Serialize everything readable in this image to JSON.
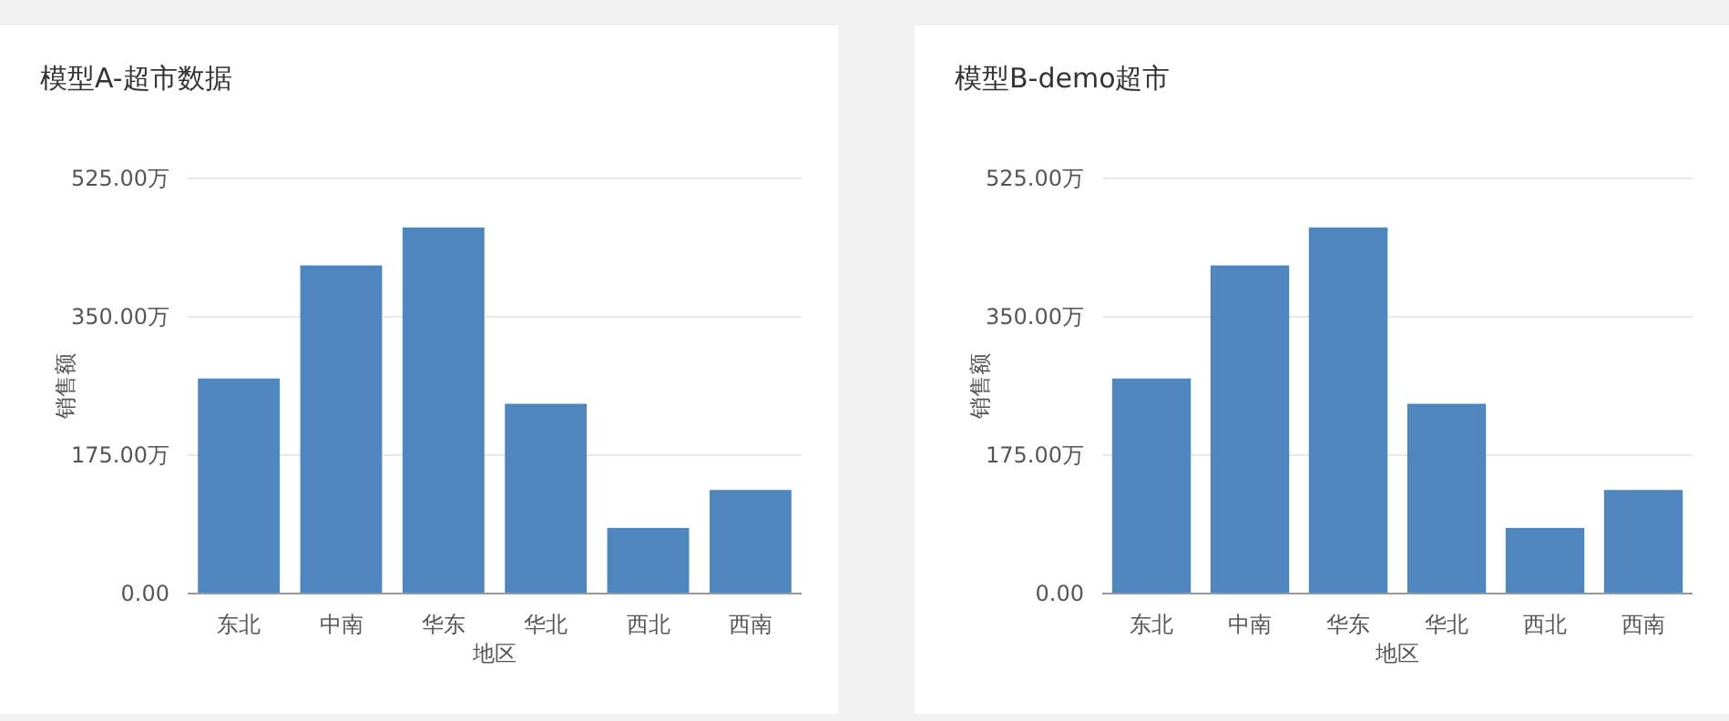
{
  "chart_data": [
    {
      "type": "bar",
      "title": "模型A-超市数据",
      "xlabel": "地区",
      "ylabel": "销售额",
      "categories": [
        "东北",
        "中南",
        "华东",
        "华北",
        "西北",
        "西南"
      ],
      "values": [
        272,
        415,
        463,
        240,
        83,
        131
      ],
      "color": "#4f86bd",
      "ylim": [
        0,
        525
      ],
      "yticks": [
        {
          "value": 0,
          "label": "0.00"
        },
        {
          "value": 175,
          "label": "175.00万"
        },
        {
          "value": 350,
          "label": "350.00万"
        },
        {
          "value": 525,
          "label": "525.00万"
        }
      ],
      "grid": "y"
    },
    {
      "type": "bar",
      "title": "模型B-demo超市",
      "xlabel": "地区",
      "ylabel": "销售额",
      "categories": [
        "东北",
        "中南",
        "华东",
        "华北",
        "西北",
        "西南"
      ],
      "values": [
        272,
        415,
        463,
        240,
        83,
        131
      ],
      "color": "#4f86bd",
      "ylim": [
        0,
        525
      ],
      "yticks": [
        {
          "value": 0,
          "label": "0.00"
        },
        {
          "value": 175,
          "label": "175.00万"
        },
        {
          "value": 350,
          "label": "350.00万"
        },
        {
          "value": 525,
          "label": "525.00万"
        }
      ],
      "grid": "y"
    }
  ]
}
